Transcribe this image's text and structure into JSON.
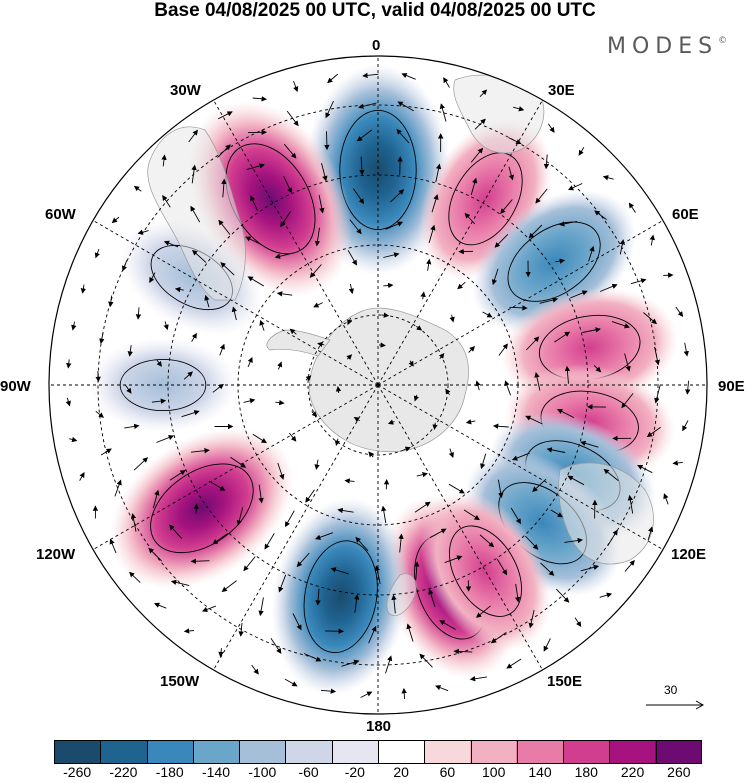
{
  "title": "Base 04/08/2025 00 UTC, valid 04/08/2025 00 UTC",
  "brand": "MODES",
  "brand_mark": "©",
  "map": {
    "projection": "south polar stereographic",
    "longitude_labels": {
      "n": "0",
      "ne1": "30E",
      "ne2": "60E",
      "e": "90E",
      "se1": "120E",
      "se2": "150E",
      "s": "180",
      "sw1": "150W",
      "sw2": "120W",
      "w": "90W",
      "nw2": "60W",
      "nw1": "30W"
    },
    "land_color": "#e8e8e8",
    "anomaly_centers": [
      {
        "lon": 0,
        "value": -270
      },
      {
        "lon": 330,
        "value": 270
      },
      {
        "lon": 30,
        "value": 150
      },
      {
        "lon": 55,
        "value": -170
      },
      {
        "lon": 80,
        "value": 160
      },
      {
        "lon": 100,
        "value": 140
      },
      {
        "lon": 115,
        "value": -150
      },
      {
        "lon": 130,
        "value": -160
      },
      {
        "lon": 160,
        "value": 200
      },
      {
        "lon": 150,
        "value": 140
      },
      {
        "lon": 190,
        "value": -230
      },
      {
        "lon": 235,
        "value": 240
      },
      {
        "lon": 300,
        "value": -80
      },
      {
        "lon": 270,
        "value": -60
      }
    ]
  },
  "reference_vector": {
    "label": "30"
  },
  "colorbar": {
    "colors": [
      "#1a4b6c",
      "#1f6391",
      "#3a88bb",
      "#6aa5ca",
      "#a5bfd9",
      "#cfd6e8",
      "#e6e6f3",
      "#ffffff",
      "#f7d9dc",
      "#f2b1c2",
      "#e97ba9",
      "#d23e8f",
      "#a6137f",
      "#6d0b73"
    ],
    "tick_labels": [
      "-260",
      "-220",
      "-180",
      "-140",
      "-100",
      "-60",
      "-20",
      "20",
      "60",
      "100",
      "140",
      "180",
      "220",
      "260"
    ]
  }
}
